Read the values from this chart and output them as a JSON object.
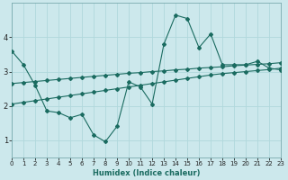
{
  "xlabel": "Humidex (Indice chaleur)",
  "background_color": "#cce8ec",
  "line_color": "#1a6b60",
  "grid_color": "#b0d8dc",
  "x_data": [
    0,
    1,
    2,
    3,
    4,
    5,
    6,
    7,
    8,
    9,
    10,
    11,
    12,
    13,
    14,
    15,
    16,
    17,
    18,
    19,
    20,
    21,
    22,
    23
  ],
  "y_main": [
    3.6,
    3.2,
    2.6,
    1.85,
    1.8,
    1.65,
    1.75,
    1.15,
    0.95,
    1.4,
    2.7,
    2.55,
    2.05,
    3.8,
    4.65,
    4.55,
    3.7,
    4.1,
    3.2,
    3.2,
    3.2,
    3.3,
    3.1,
    3.05
  ],
  "y_upper": [
    2.65,
    2.68,
    2.71,
    2.74,
    2.77,
    2.8,
    2.83,
    2.86,
    2.89,
    2.92,
    2.95,
    2.97,
    3.0,
    3.02,
    3.05,
    3.07,
    3.1,
    3.12,
    3.14,
    3.17,
    3.19,
    3.21,
    3.23,
    3.26
  ],
  "y_lower": [
    2.05,
    2.1,
    2.15,
    2.2,
    2.25,
    2.3,
    2.35,
    2.4,
    2.45,
    2.5,
    2.55,
    2.6,
    2.65,
    2.7,
    2.75,
    2.8,
    2.85,
    2.9,
    2.94,
    2.97,
    3.0,
    3.03,
    3.06,
    3.1
  ],
  "ylim": [
    0.5,
    5.0
  ],
  "xlim": [
    0,
    23
  ],
  "yticks": [
    1,
    2,
    3,
    4
  ],
  "xticks": [
    0,
    1,
    2,
    3,
    4,
    5,
    6,
    7,
    8,
    9,
    10,
    11,
    12,
    13,
    14,
    15,
    16,
    17,
    18,
    19,
    20,
    21,
    22,
    23
  ],
  "figsize": [
    3.2,
    2.0
  ],
  "dpi": 100,
  "tick_fontsize": 5,
  "xlabel_fontsize": 6,
  "marker_size": 2.0,
  "line_width": 0.8
}
